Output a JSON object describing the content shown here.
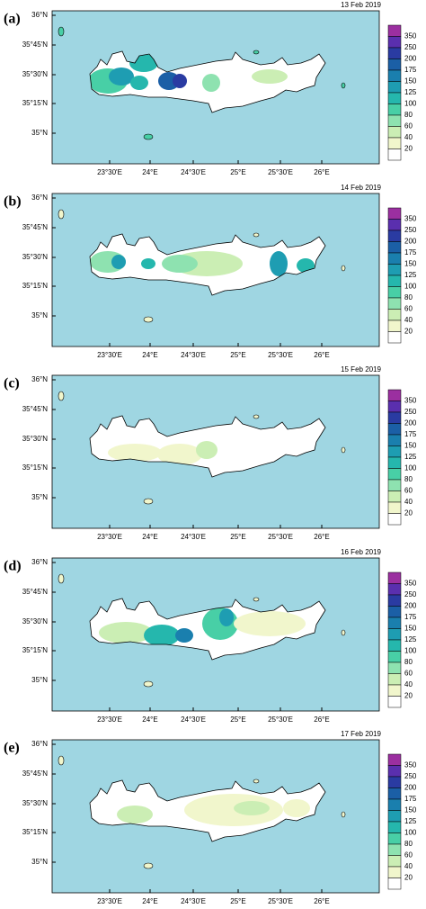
{
  "panels": [
    {
      "label": "(a)",
      "date": "13 Feb 2019"
    },
    {
      "label": "(b)",
      "date": "14 Feb 2019"
    },
    {
      "label": "(c)",
      "date": "15 Feb 2019"
    },
    {
      "label": "(d)",
      "date": "16 Feb 2019"
    },
    {
      "label": "(e)",
      "date": "17 Feb 2019"
    }
  ],
  "lat_ticks": [
    "36°N",
    "35°45'N",
    "35°30'N",
    "35°15'N",
    "35°N"
  ],
  "lon_ticks": [
    "23°30'E",
    "24°E",
    "24°30'E",
    "25°E",
    "25°30'E",
    "26°E"
  ],
  "colorbar": {
    "levels": [
      350,
      250,
      200,
      175,
      150,
      125,
      100,
      80,
      60,
      40,
      20
    ],
    "colors": [
      "#9b2fa0",
      "#5a2fae",
      "#2a3ba2",
      "#1b5fa6",
      "#1a7fae",
      "#1e9db2",
      "#25b7ad",
      "#48cfa6",
      "#8ee2b0",
      "#cbeeb4",
      "#f1f6cc"
    ]
  }
}
